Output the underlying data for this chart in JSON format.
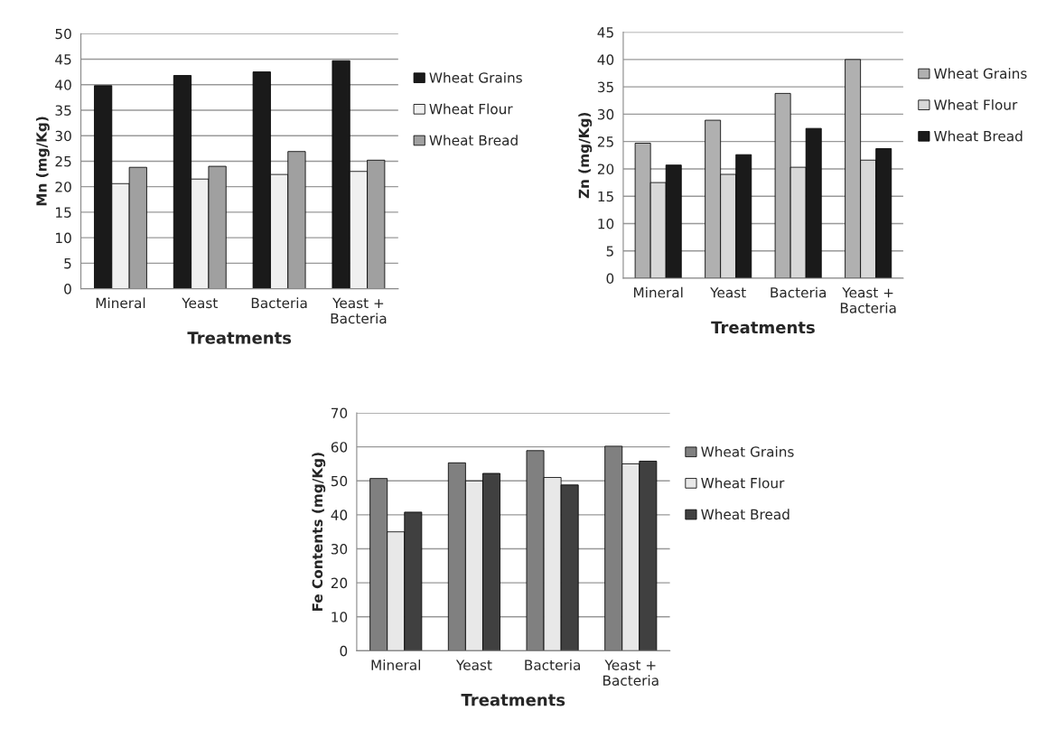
{
  "chart_data": [
    {
      "type": "bar",
      "xlabel": "Treatments",
      "ylabel": "Mn (mg/Kg)",
      "categories": [
        "Mineral",
        "Yeast",
        "Bacteria",
        "Yeast +\nBacteria"
      ],
      "ylim": [
        0,
        50
      ],
      "yticks": [
        0,
        5,
        10,
        15,
        20,
        25,
        30,
        35,
        40,
        45,
        50
      ],
      "grid": "y",
      "legend": "right",
      "series": [
        {
          "name": "Wheat Grains",
          "color": "#1a1a1a",
          "values": [
            39.8,
            41.8,
            42.5,
            44.7
          ]
        },
        {
          "name": "Wheat Flour",
          "color": "#f0f0f0",
          "values": [
            20.6,
            21.5,
            22.4,
            23.0
          ]
        },
        {
          "name": "Wheat Bread",
          "color": "#a0a0a0",
          "values": [
            23.8,
            24.0,
            26.9,
            25.2
          ]
        }
      ]
    },
    {
      "type": "bar",
      "xlabel": "Treatments",
      "ylabel": "Zn (mg/Kg)",
      "categories": [
        "Mineral",
        "Yeast",
        "Bacteria",
        "Yeast +\nBacteria"
      ],
      "ylim": [
        0,
        45
      ],
      "yticks": [
        0,
        5,
        10,
        15,
        20,
        25,
        30,
        35,
        40,
        45
      ],
      "grid": "y",
      "legend": "right",
      "series": [
        {
          "name": "Wheat Grains",
          "color": "#b0b0b0",
          "values": [
            24.7,
            28.9,
            33.8,
            40.0
          ]
        },
        {
          "name": "Wheat Flour",
          "color": "#d8d8d8",
          "values": [
            17.5,
            19.0,
            20.3,
            21.6
          ]
        },
        {
          "name": "Wheat Bread",
          "color": "#1a1a1a",
          "values": [
            20.7,
            22.6,
            27.4,
            23.7
          ]
        }
      ]
    },
    {
      "type": "bar",
      "xlabel": "Treatments",
      "ylabel": "Fe Contents (mg/Kg)",
      "categories": [
        "Mineral",
        "Yeast",
        "Bacteria",
        "Yeast +\nBacteria"
      ],
      "ylim": [
        0,
        70
      ],
      "yticks": [
        0,
        10,
        20,
        30,
        40,
        50,
        60,
        70
      ],
      "grid": "y",
      "legend": "right",
      "series": [
        {
          "name": "Wheat Grains",
          "color": "#808080",
          "values": [
            50.7,
            55.3,
            58.9,
            60.2
          ]
        },
        {
          "name": "Wheat Flour",
          "color": "#e8e8e8",
          "values": [
            35.0,
            50.0,
            51.0,
            55.0
          ]
        },
        {
          "name": "Wheat Bread",
          "color": "#404040",
          "values": [
            40.8,
            52.2,
            48.8,
            55.8
          ]
        }
      ]
    }
  ]
}
